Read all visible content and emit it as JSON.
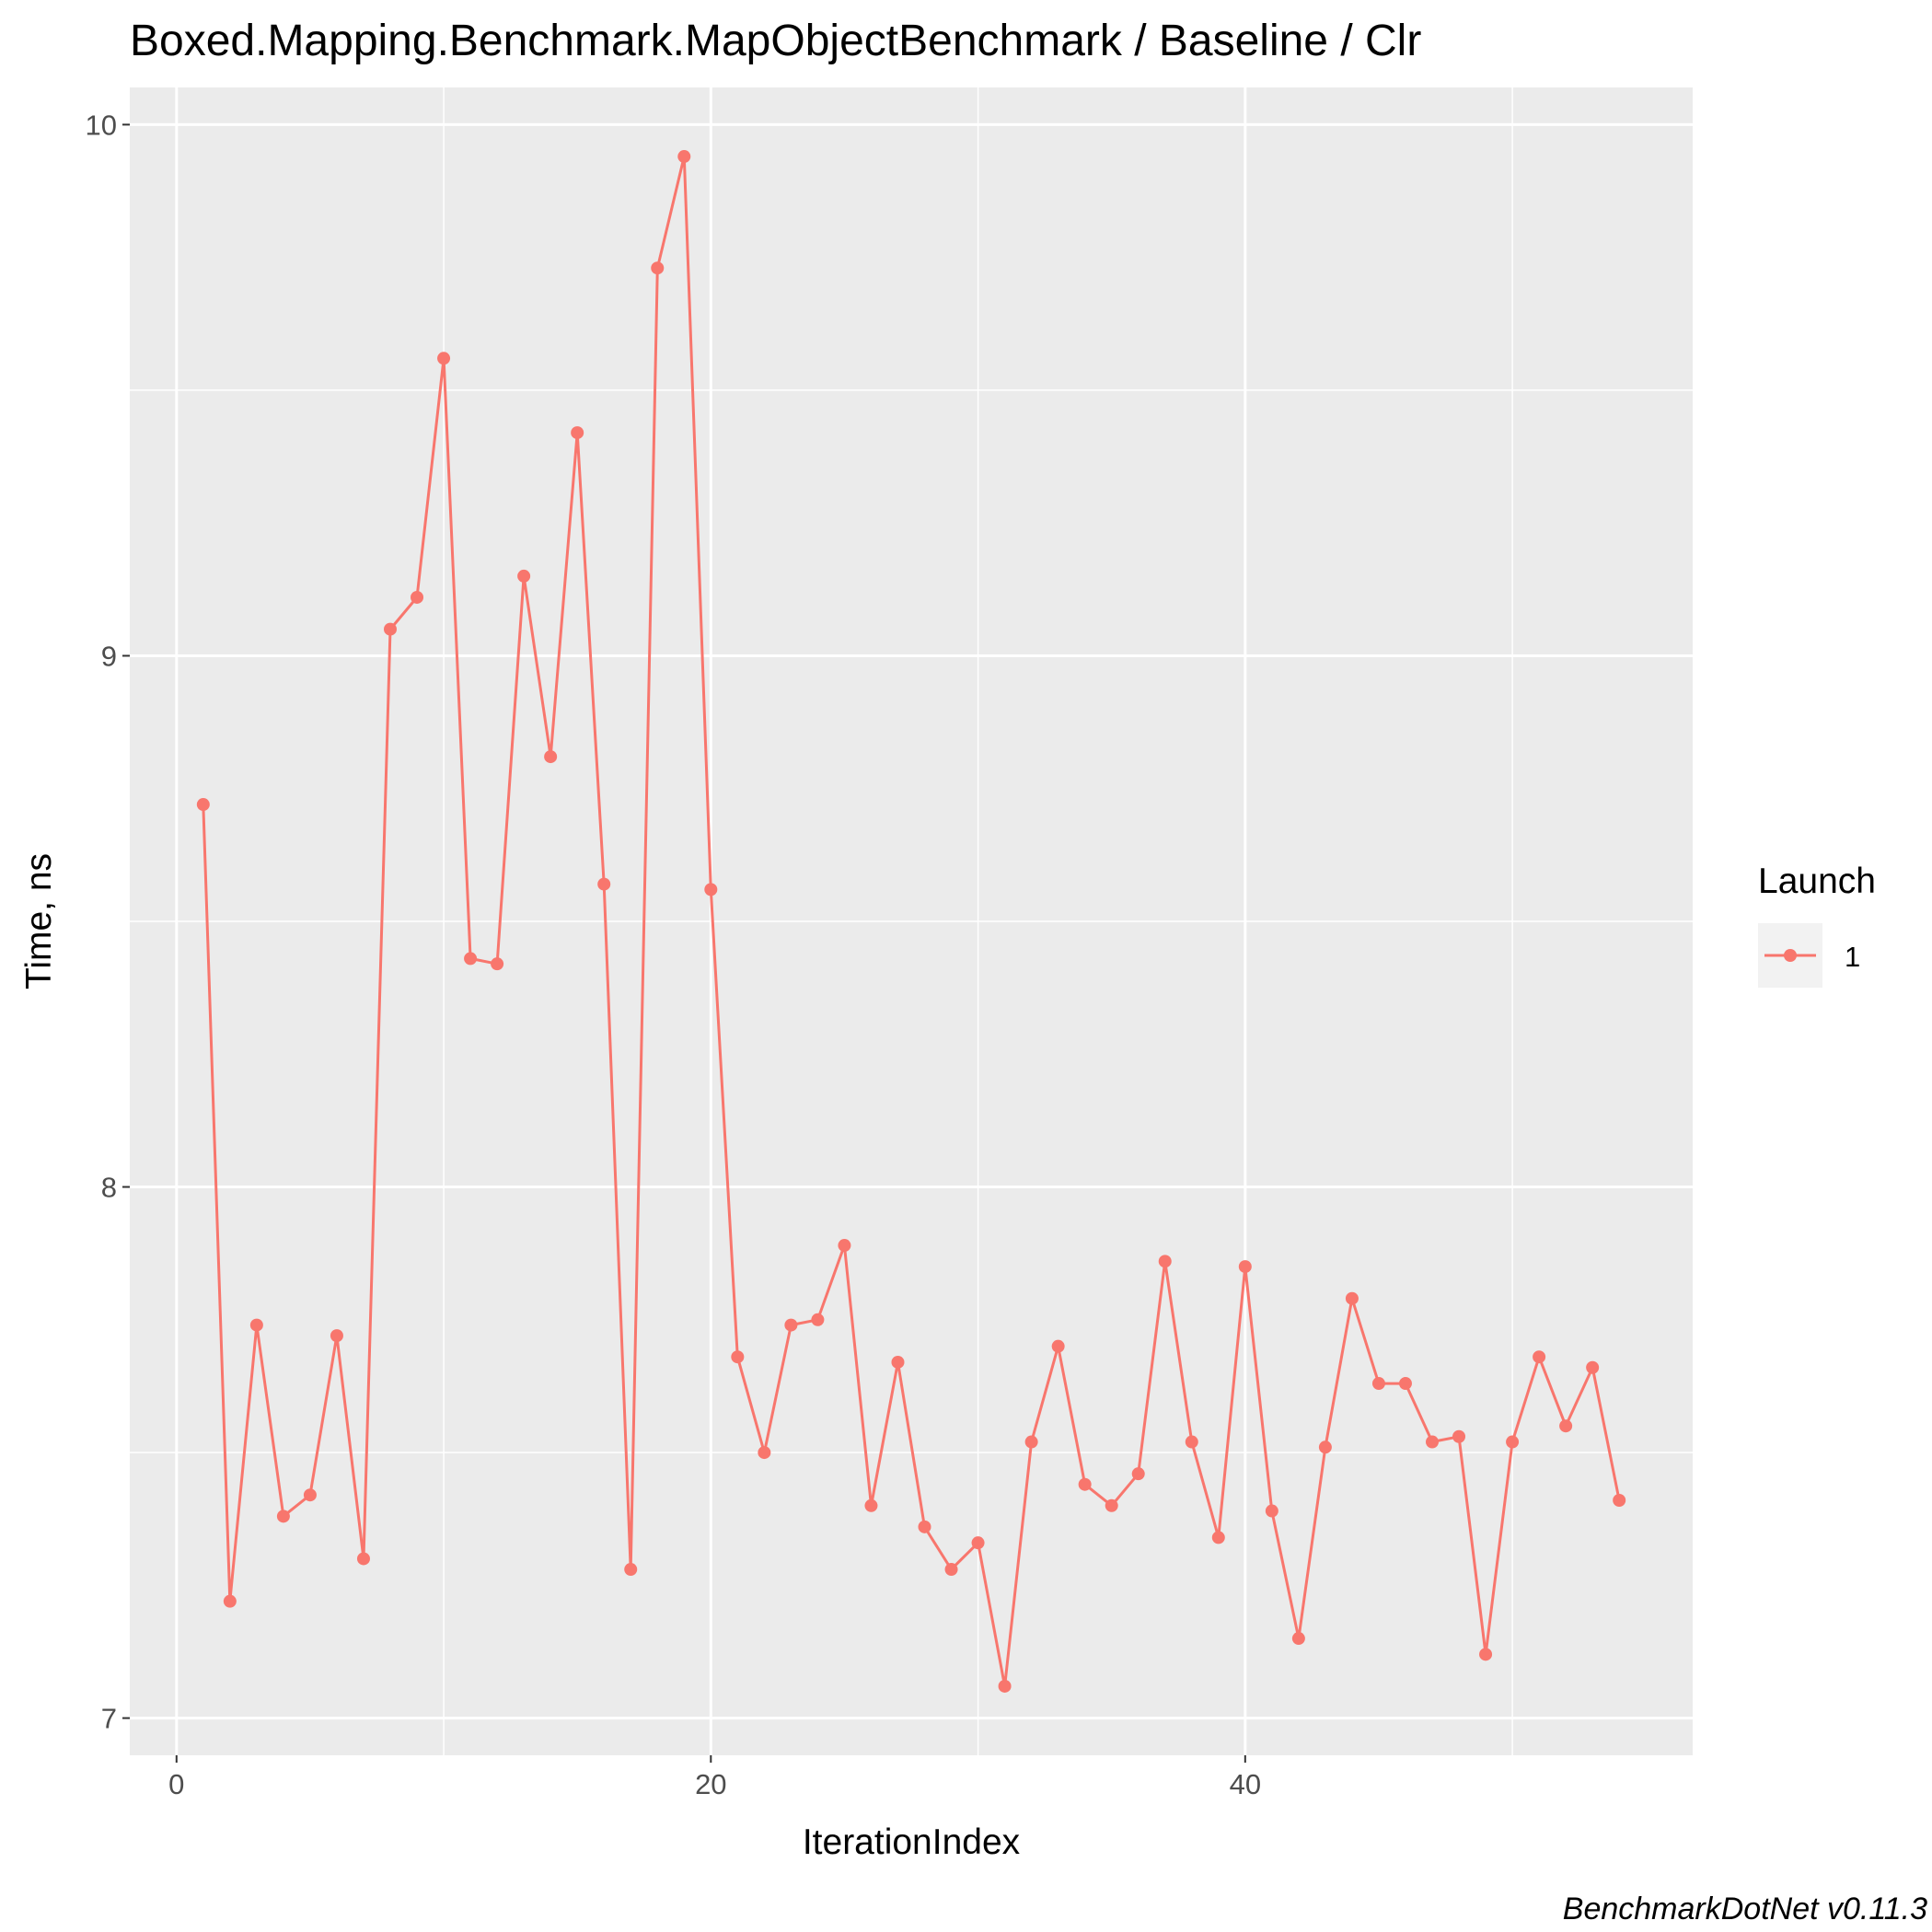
{
  "chart_data": {
    "type": "line",
    "title": "Boxed.Mapping.Benchmark.MapObjectBenchmark / Baseline / Clr",
    "xlabel": "IterationIndex",
    "ylabel": "Time, ns",
    "caption": "BenchmarkDotNet v0.11.3",
    "xlim": [
      -1.75,
      56.75
    ],
    "ylim": [
      6.93,
      10.07
    ],
    "x_ticks": [
      0,
      20,
      40
    ],
    "x_tick_labels": [
      "0",
      "20",
      "40"
    ],
    "x_minor_ticks": [
      10,
      30,
      50
    ],
    "y_ticks": [
      7,
      8,
      9,
      10
    ],
    "y_tick_labels": [
      "7",
      "8",
      "9",
      "10"
    ],
    "y_minor_ticks": [
      7.5,
      8.5,
      9.5
    ],
    "grid": true,
    "legend": {
      "title": "Launch",
      "position": "right",
      "entries": [
        "1"
      ]
    },
    "series": [
      {
        "name": "1",
        "color": "#F8766D",
        "x": [
          1,
          2,
          3,
          4,
          5,
          6,
          7,
          8,
          9,
          10,
          11,
          12,
          13,
          14,
          15,
          16,
          17,
          18,
          19,
          20,
          21,
          22,
          23,
          24,
          25,
          26,
          27,
          28,
          29,
          30,
          31,
          32,
          33,
          34,
          35,
          36,
          37,
          38,
          39,
          40,
          41,
          42,
          43,
          44,
          45,
          46,
          47,
          48,
          49,
          50,
          51,
          52,
          53,
          54
        ],
        "y": [
          8.72,
          7.22,
          7.74,
          7.38,
          7.42,
          7.72,
          7.3,
          9.05,
          9.11,
          9.56,
          8.43,
          8.42,
          9.15,
          8.81,
          9.42,
          8.57,
          7.28,
          9.73,
          9.94,
          8.56,
          7.68,
          7.5,
          7.74,
          7.75,
          7.89,
          7.4,
          7.67,
          7.36,
          7.28,
          7.33,
          7.06,
          7.52,
          7.7,
          7.44,
          7.4,
          7.46,
          7.86,
          7.52,
          7.34,
          7.85,
          7.39,
          7.15,
          7.51,
          7.79,
          7.63,
          7.63,
          7.52,
          7.53,
          7.12,
          7.52,
          7.68,
          7.55,
          7.66,
          7.41
        ]
      }
    ]
  }
}
